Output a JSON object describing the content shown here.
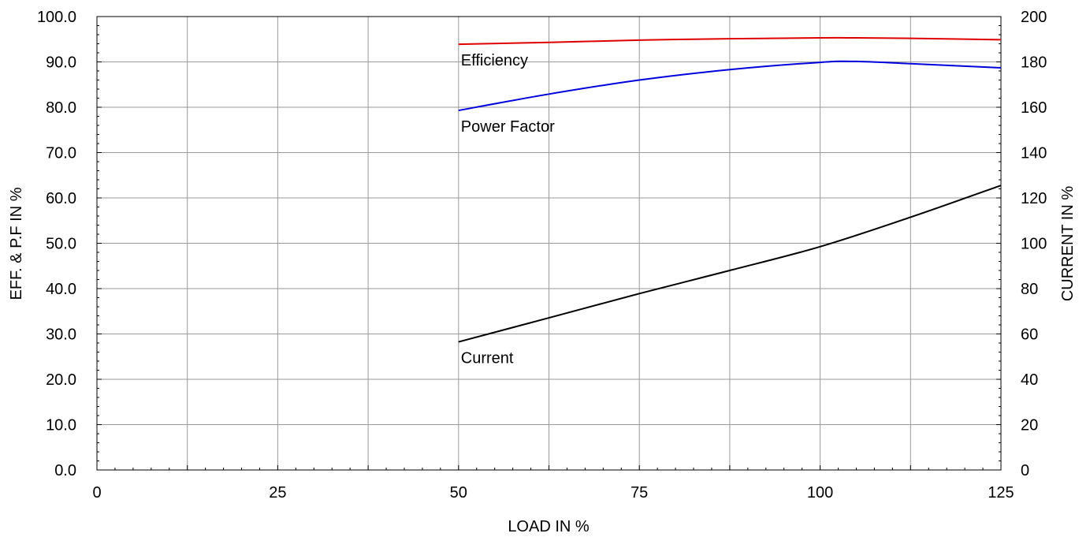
{
  "chart_data": {
    "type": "line",
    "title": "",
    "xlabel": "LOAD IN %",
    "ylabel_left": "EFF. & P.F IN %",
    "ylabel_right": "CURRENT IN %",
    "xlim": [
      0,
      125
    ],
    "ylim_left": [
      0,
      100
    ],
    "ylim_right": [
      0,
      200
    ],
    "x_ticks": [
      "0",
      "25",
      "50",
      "75",
      "100",
      "125"
    ],
    "y_left_ticks": [
      "0.0",
      "10.0",
      "20.0",
      "30.0",
      "40.0",
      "50.0",
      "60.0",
      "70.0",
      "80.0",
      "90.0",
      "100.0"
    ],
    "y_right_ticks": [
      "0",
      "20",
      "40",
      "60",
      "80",
      "100",
      "120",
      "140",
      "160",
      "180",
      "200"
    ],
    "grid": true,
    "series": [
      {
        "name": "Efficiency",
        "axis": "left",
        "color": "#e00000",
        "x": [
          50,
          62.5,
          75,
          87.5,
          100,
          105,
          112.5,
          125
        ],
        "y": [
          93.9,
          94.3,
          94.8,
          95.1,
          95.3,
          95.3,
          95.2,
          94.9
        ]
      },
      {
        "name": "Power Factor",
        "axis": "left",
        "color": "#0000dd",
        "x": [
          50,
          62.5,
          75,
          87.5,
          100,
          105,
          112.5,
          125
        ],
        "y": [
          79.3,
          82.9,
          86.0,
          88.3,
          89.9,
          90.1,
          89.6,
          88.7
        ]
      },
      {
        "name": "Current",
        "axis": "right",
        "color": "#000000",
        "x": [
          50,
          62.5,
          75,
          87.5,
          100,
          112.5,
          125
        ],
        "y": [
          56.5,
          67.1,
          77.8,
          88.0,
          98.5,
          111.5,
          125.5
        ]
      }
    ]
  }
}
